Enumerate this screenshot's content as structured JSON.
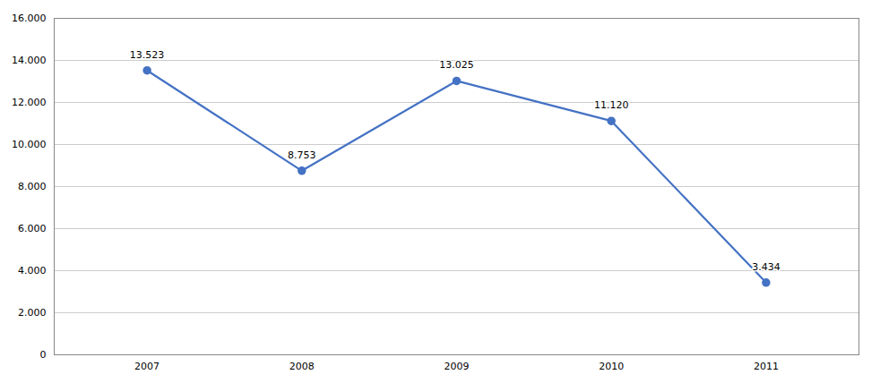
{
  "chart_data": {
    "type": "line",
    "x": [
      2007,
      2008,
      2009,
      2010,
      2011
    ],
    "values": [
      13523,
      8753,
      13025,
      11120,
      3434
    ],
    "value_labels": [
      "13.523",
      "8.753",
      "13.025",
      "11.120",
      "3.434"
    ],
    "data_labels": true,
    "color": "#4472C4",
    "marker": "circle",
    "xlim": [
      2006.4,
      2011.6
    ],
    "xticks": [
      2007,
      2008,
      2009,
      2010,
      2011
    ],
    "ylim": [
      0,
      16000
    ],
    "yticks": [
      0,
      {
        "value": 2000,
        "label": "2.000"
      },
      {
        "value": 4000,
        "label": "4.000"
      },
      {
        "value": 6000,
        "label": "6.000"
      },
      {
        "value": 8000,
        "label": "8.000"
      },
      {
        "value": 10000,
        "label": "10.000"
      },
      {
        "value": 12000,
        "label": "12.000"
      },
      {
        "value": 14000,
        "label": "14.000"
      },
      {
        "value": 16000,
        "label": "16.000"
      }
    ],
    "grid": true
  }
}
